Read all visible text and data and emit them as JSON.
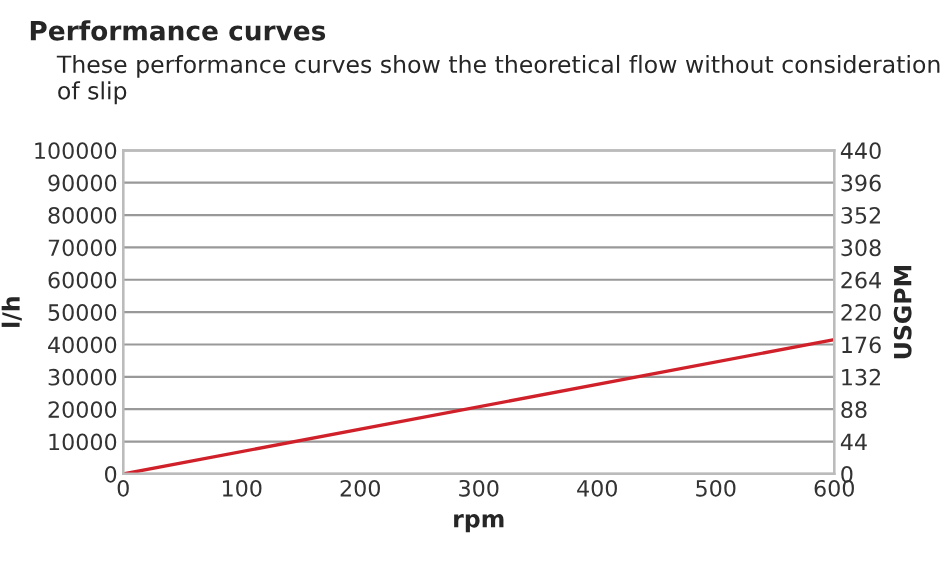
{
  "chart_data": {
    "type": "line",
    "title": "Performance curves",
    "subtitle": "These performance curves show the theoretical flow without consideration of slip",
    "xlabel": "rpm",
    "ylabel": "l/h",
    "y2label": "USGPM",
    "x": [
      0,
      600
    ],
    "series": [
      {
        "color": "#d0202a",
        "values": [
          0,
          41500
        ]
      }
    ],
    "xlim": [
      0,
      600
    ],
    "xticks": [
      0,
      100,
      200,
      300,
      400,
      500,
      600
    ],
    "ylim": [
      0,
      100000
    ],
    "yticks": [
      0,
      10000,
      20000,
      30000,
      40000,
      50000,
      60000,
      70000,
      80000,
      90000,
      100000
    ],
    "y2lim": [
      0,
      440
    ],
    "y2ticks": [
      0,
      44,
      88,
      132,
      176,
      220,
      264,
      308,
      352,
      396,
      440
    ],
    "grid": "y",
    "legend": false,
    "marker": "none",
    "line_style": "solid"
  }
}
